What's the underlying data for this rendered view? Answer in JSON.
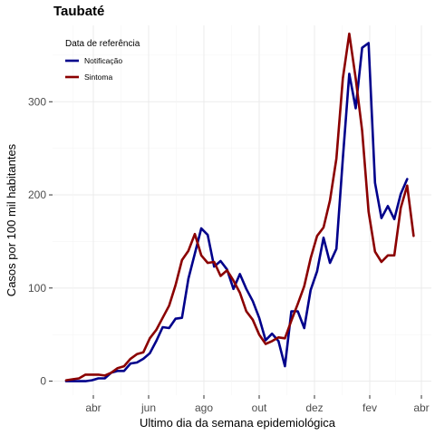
{
  "chart_data": {
    "type": "line",
    "title": "Taubaté",
    "xlabel": "Ultimo dia da semana epidemiológica",
    "ylabel": "Casos por 100 mil habitantes",
    "ylim": [
      -15,
      382
    ],
    "yticks": [
      0,
      100,
      200,
      300
    ],
    "x_ticks": [
      "abr",
      "jun",
      "ago",
      "out",
      "dez",
      "fev",
      "abr"
    ],
    "grid": true,
    "legend": {
      "title": "Data de referência",
      "position": "top-left"
    },
    "series": [
      {
        "name": "Notificação",
        "color": "#00008B",
        "values": [
          0,
          0,
          0,
          0,
          1,
          3,
          3,
          9,
          11,
          11,
          19,
          20,
          24,
          30,
          43,
          58,
          57,
          67,
          68,
          110,
          137,
          164,
          157,
          123,
          129,
          120,
          99,
          115,
          99,
          86,
          68,
          44,
          51,
          43,
          16,
          75,
          75,
          57,
          98,
          118,
          154,
          127,
          142,
          239,
          330,
          293,
          358,
          363,
          213,
          175,
          188,
          174,
          201,
          217
        ]
      },
      {
        "name": "Sintoma",
        "color": "#8B0000",
        "values": [
          1,
          2,
          3,
          7,
          7,
          7,
          6,
          9,
          14,
          16,
          24,
          29,
          31,
          46,
          55,
          68,
          81,
          103,
          130,
          140,
          158,
          135,
          127,
          128,
          113,
          119,
          108,
          95,
          75,
          66,
          50,
          40,
          43,
          47,
          46,
          65,
          83,
          102,
          132,
          156,
          165,
          194,
          239,
          325,
          373,
          325,
          269,
          182,
          139,
          128,
          135,
          135,
          186,
          210,
          156
        ]
      }
    ]
  }
}
